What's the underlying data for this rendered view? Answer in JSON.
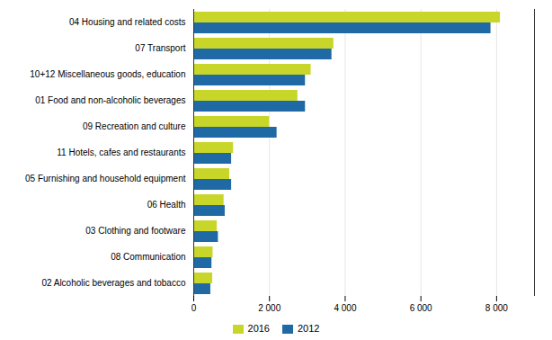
{
  "chart_data": {
    "type": "bar",
    "orientation": "horizontal",
    "categories": [
      "02 Alcoholic beverages and tobacco",
      "08 Communication",
      "03 Clothing and footware",
      "06 Health",
      "05 Furnishing and household equipment",
      "11 Hotels, cafes and restaurants",
      "09 Recreation and culture",
      "01 Food and non-alcoholic beverages",
      "10+12 Miscellaneous goods, education",
      "07 Transport",
      "04 Housing and related costs"
    ],
    "series": [
      {
        "name": "2016",
        "color": "#c8d629",
        "values": [
          500,
          510,
          620,
          800,
          950,
          1050,
          2000,
          2750,
          3100,
          3700,
          8100
        ]
      },
      {
        "name": "2012",
        "color": "#1f6aa5",
        "values": [
          450,
          480,
          650,
          830,
          1000,
          1000,
          2200,
          2950,
          2950,
          3650,
          7850
        ]
      }
    ],
    "xlim": [
      0,
      9000
    ],
    "xticks": [
      0,
      {
        "value": 2000,
        "label": "2 000"
      },
      {
        "value": 4000,
        "label": "4 000"
      },
      {
        "value": 6000,
        "label": "6 000"
      },
      {
        "value": 8000,
        "label": "8 000"
      }
    ],
    "grid": true,
    "legend": "bottom"
  }
}
